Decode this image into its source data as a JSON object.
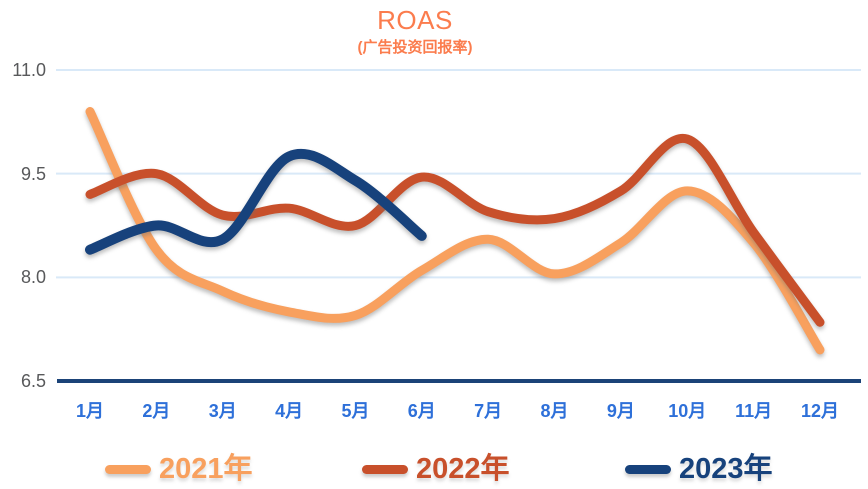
{
  "chart_data": {
    "type": "line",
    "title": "ROAS",
    "subtitle": "(广告投资回报率)",
    "x_labels": [
      "1月",
      "2月",
      "3月",
      "4月",
      "5月",
      "6月",
      "7月",
      "8月",
      "9月",
      "10月",
      "11月",
      "12月"
    ],
    "y_ticks": [
      "11.0",
      "9.5",
      "8.0",
      "6.5"
    ],
    "ylim": [
      6.5,
      11.0
    ],
    "grid": true,
    "legend_position": "bottom",
    "colors": {
      "grid": "#D9E9F8",
      "axis": "#1B4378",
      "title": "#FB7C4D",
      "x_labels": "#2E70D9",
      "y_labels": "#58595B"
    },
    "series": [
      {
        "name": "2021年",
        "color": "#F8A05E",
        "values": [
          10.4,
          8.4,
          7.8,
          7.5,
          7.45,
          8.1,
          8.55,
          8.05,
          8.5,
          9.25,
          8.5,
          6.95
        ]
      },
      {
        "name": "2022年",
        "color": "#C8502B",
        "values": [
          9.2,
          9.5,
          8.9,
          9.0,
          8.75,
          9.45,
          8.95,
          8.85,
          9.25,
          10.0,
          8.65,
          7.35
        ]
      },
      {
        "name": "2023年",
        "color": "#17427C",
        "values": [
          8.4,
          8.75,
          8.55,
          9.75,
          9.4,
          8.6,
          null,
          null,
          null,
          null,
          null,
          null
        ]
      }
    ]
  }
}
